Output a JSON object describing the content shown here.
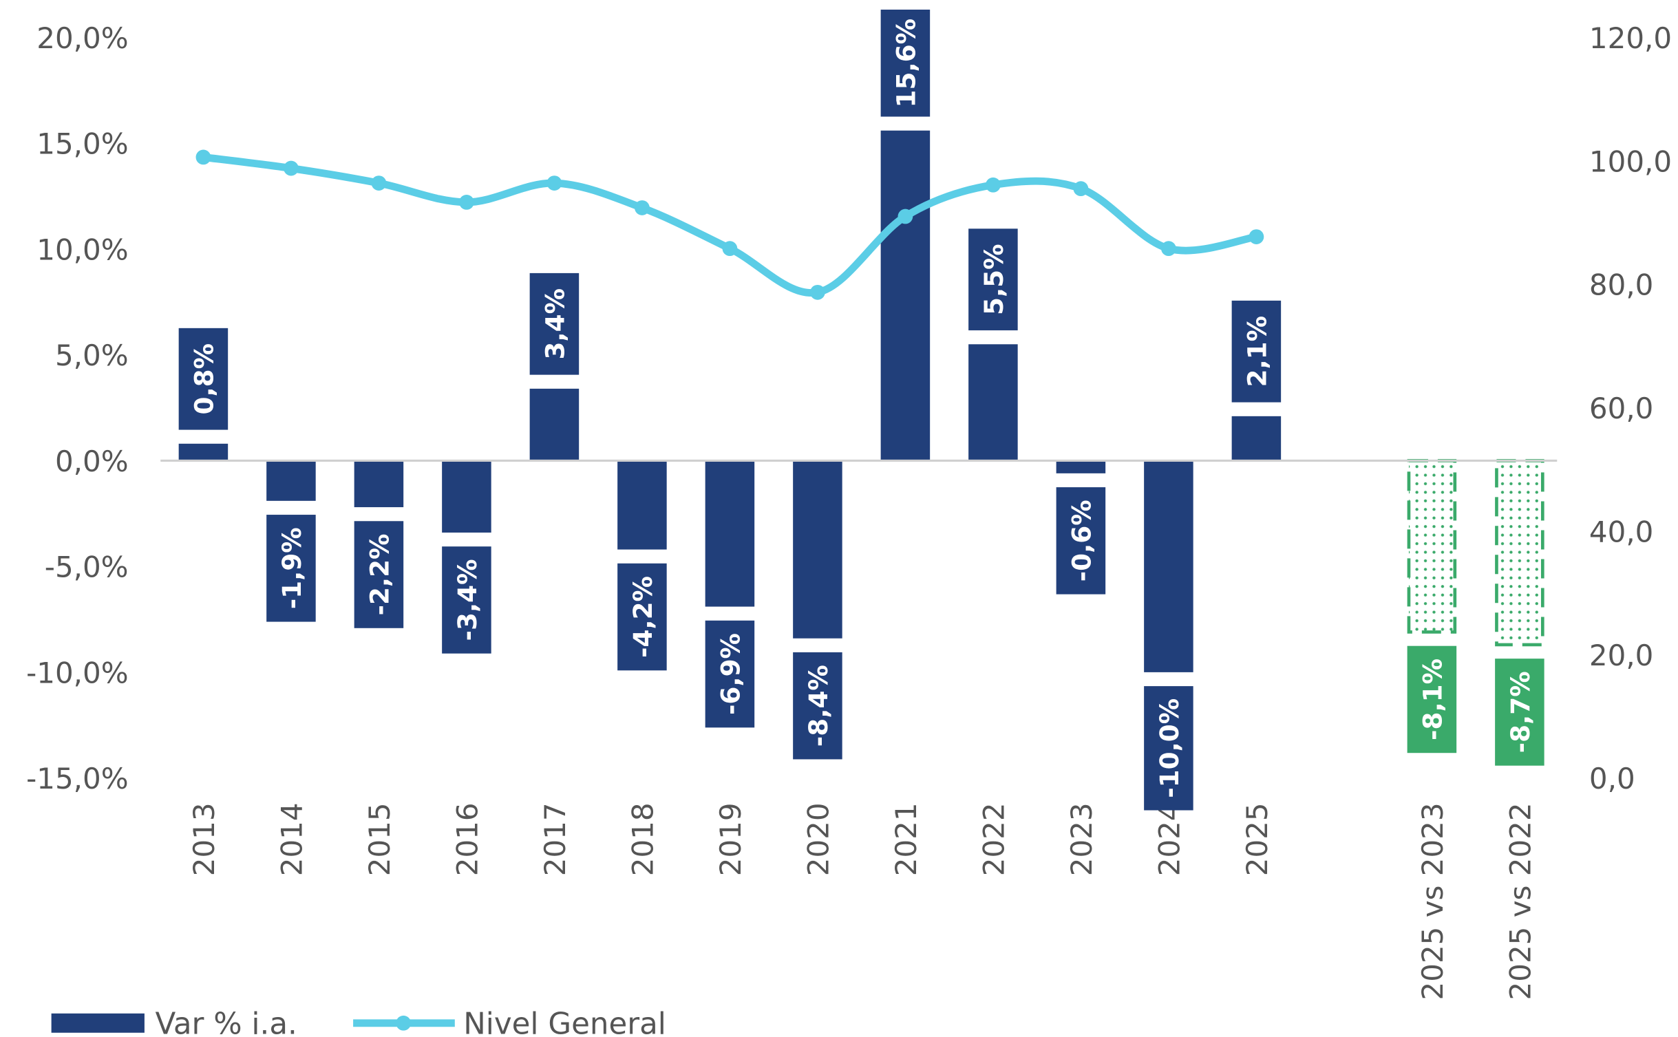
{
  "chart_data": {
    "type": "bar",
    "categories": [
      "2013",
      "2014",
      "2015",
      "2016",
      "2017",
      "2018",
      "2019",
      "2020",
      "2021",
      "2022",
      "2023",
      "2024",
      "2025",
      null,
      "2025 vs 2023",
      "2025 vs 2022"
    ],
    "series": [
      {
        "name": "Var % i.a.",
        "type": "bar",
        "color": "#213f7a",
        "colors": [
          "#213f7a",
          "#213f7a",
          "#213f7a",
          "#213f7a",
          "#213f7a",
          "#213f7a",
          "#213f7a",
          "#213f7a",
          "#213f7a",
          "#213f7a",
          "#213f7a",
          "#213f7a",
          "#213f7a",
          null,
          "#3aaa6a",
          "#3aaa6a"
        ],
        "values": [
          0.8,
          -1.9,
          -2.2,
          -3.4,
          3.4,
          -4.2,
          -6.9,
          -8.4,
          15.6,
          5.5,
          -0.6,
          -10.0,
          2.1,
          null,
          -8.1,
          -8.7
        ],
        "value_labels": [
          "0,8%",
          "-1,9%",
          "-2,2%",
          "-3,4%",
          "3,4%",
          "-4,2%",
          "-6,9%",
          "-8,4%",
          "15,6%",
          "5,5%",
          "-0,6%",
          "-10,0%",
          "2,1%",
          null,
          "-8,1%",
          "-8,7%"
        ]
      },
      {
        "name": "Nivel General",
        "type": "line",
        "axis": "y2",
        "color": "#5bcde6",
        "values": [
          100.6,
          98.8,
          96.4,
          93.3,
          96.4,
          92.4,
          85.8,
          78.7,
          91.0,
          96.1,
          95.5,
          85.8,
          87.7,
          null,
          null,
          null
        ]
      }
    ],
    "ylim": [
      -15,
      20
    ],
    "yticks": [
      {
        "value": -15,
        "label": "-15,0%"
      },
      {
        "value": -10,
        "label": "-10,0%"
      },
      {
        "value": -5,
        "label": "-5,0%"
      },
      {
        "value": 0,
        "label": "0,0%"
      },
      {
        "value": 5,
        "label": "5,0%"
      },
      {
        "value": 10,
        "label": "10,0%"
      },
      {
        "value": 15,
        "label": "15,0%"
      },
      {
        "value": 20,
        "label": "20,0%"
      }
    ],
    "y2lim": [
      0,
      120
    ],
    "y2ticks": [
      {
        "value": 0,
        "label": "0,0"
      },
      {
        "value": 20,
        "label": "20,0"
      },
      {
        "value": 40,
        "label": "40,0"
      },
      {
        "value": 60,
        "label": "60,0"
      },
      {
        "value": 80,
        "label": "80,0"
      },
      {
        "value": 100,
        "label": "100,0"
      },
      {
        "value": 120,
        "label": "120,0"
      }
    ],
    "legend": "bottom-left"
  }
}
